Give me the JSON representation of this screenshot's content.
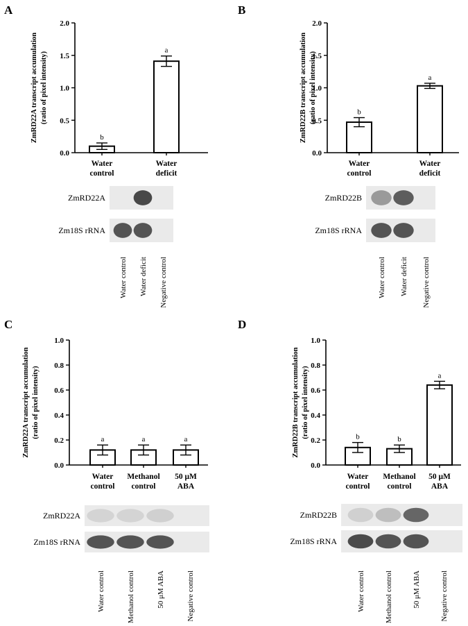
{
  "colors": {
    "background": "#ffffff",
    "ink": "#000000",
    "bar_fill": "#ffffff",
    "blot_bg": "#eaeaea",
    "band": "#3a3a3a"
  },
  "chart_data": [
    {
      "panel": "A",
      "type": "bar",
      "ylabel_line1": "ZmRD22A transcript accumulation",
      "ylabel_line2": "(ratio of pixel intensity)",
      "ylim": [
        0,
        2.0
      ],
      "yticks": [
        "0.0",
        "0.5",
        "1.0",
        "1.5",
        "2.0"
      ],
      "categories": [
        {
          "line1": "Water",
          "line2": "control"
        },
        {
          "line1": "Water",
          "line2": "deficit"
        }
      ],
      "values": [
        0.1,
        1.41
      ],
      "errors": [
        0.05,
        0.08
      ],
      "significance": [
        "b",
        "a"
      ],
      "blot": {
        "rows": [
          {
            "label": "ZmRD22A",
            "bands": [
              0.0,
              0.92,
              0.0
            ]
          },
          {
            "label": "Zm18S rRNA",
            "bands": [
              0.85,
              0.85,
              0.0
            ]
          }
        ],
        "lanes": [
          "Water control",
          "Water deficit",
          "Negative control"
        ]
      }
    },
    {
      "panel": "B",
      "type": "bar",
      "ylabel_line1": "ZmRD22B transcript accumulation",
      "ylabel_line2": "(ratio of pixel intensity)",
      "ylim": [
        0,
        2.0
      ],
      "yticks": [
        "0.0",
        "0.5",
        "1.0",
        "1.5",
        "2.0"
      ],
      "categories": [
        {
          "line1": "Water",
          "line2": "control"
        },
        {
          "line1": "Water",
          "line2": "deficit"
        }
      ],
      "values": [
        0.47,
        1.03
      ],
      "errors": [
        0.07,
        0.04
      ],
      "significance": [
        "b",
        "a"
      ],
      "blot": {
        "rows": [
          {
            "label": "ZmRD22B",
            "bands": [
              0.45,
              0.8,
              0.0
            ]
          },
          {
            "label": "Zm18S rRNA",
            "bands": [
              0.85,
              0.85,
              0.0
            ]
          }
        ],
        "lanes": [
          "Water control",
          "Water deficit",
          "Negative control"
        ]
      }
    },
    {
      "panel": "C",
      "type": "bar",
      "ylabel_line1": "ZmRD22A transcript accumulation",
      "ylabel_line2": "(ratio of pixel intensity)",
      "ylim": [
        0,
        1.0
      ],
      "yticks": [
        "0.0",
        "0.2",
        "0.4",
        "0.6",
        "0.8",
        "1.0"
      ],
      "categories": [
        {
          "line1": "Water",
          "line2": "control"
        },
        {
          "line1": "Methanol",
          "line2": "control"
        },
        {
          "line1": "50 μM",
          "line2": "ABA"
        }
      ],
      "values": [
        0.12,
        0.12,
        0.12
      ],
      "errors": [
        0.04,
        0.04,
        0.04
      ],
      "significance": [
        "a",
        "a",
        "a"
      ],
      "blot": {
        "rows": [
          {
            "label": "ZmRD22A",
            "bands": [
              0.12,
              0.12,
              0.15,
              0.0
            ]
          },
          {
            "label": "Zm18S rRNA",
            "bands": [
              0.85,
              0.85,
              0.85,
              0.0
            ]
          }
        ],
        "lanes": [
          "Water control",
          "Methanol control",
          "50 μM ABA",
          "Negative control"
        ]
      }
    },
    {
      "panel": "D",
      "type": "bar",
      "ylabel_line1": "ZmRD22B transcript accumulation",
      "ylabel_line2": "(ratio of pixel intensity)",
      "ylim": [
        0,
        1.0
      ],
      "yticks": [
        "0.0",
        "0.2",
        "0.4",
        "0.6",
        "0.8",
        "1.0"
      ],
      "categories": [
        {
          "line1": "Water",
          "line2": "control"
        },
        {
          "line1": "Methanol",
          "line2": "control"
        },
        {
          "line1": "50 μM",
          "line2": "ABA"
        }
      ],
      "values": [
        0.14,
        0.13,
        0.64
      ],
      "errors": [
        0.04,
        0.03,
        0.03
      ],
      "significance": [
        "b",
        "b",
        "a"
      ],
      "blot": {
        "rows": [
          {
            "label": "ZmRD22B",
            "bands": [
              0.15,
              0.25,
              0.75,
              0.0
            ]
          },
          {
            "label": "Zm18S rRNA",
            "bands": [
              0.9,
              0.85,
              0.85,
              0.0
            ]
          }
        ],
        "lanes": [
          "Water control",
          "Methanol control",
          "50 μM ABA",
          "Negative control"
        ]
      }
    }
  ]
}
